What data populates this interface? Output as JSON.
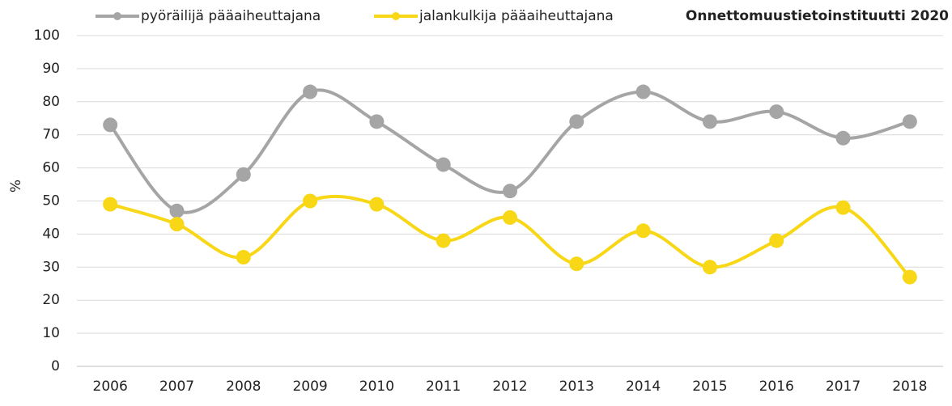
{
  "chart_data": {
    "type": "line",
    "source": "Onnettomuustietoinstituutti 2020",
    "y_label": "%",
    "categories": [
      "2006",
      "2007",
      "2008",
      "2009",
      "2010",
      "2011",
      "2012",
      "2013",
      "2014",
      "2015",
      "2016",
      "2017",
      "2018"
    ],
    "series": [
      {
        "name": "pyöräilijä pääaiheuttajana",
        "color": "#a5a5a5",
        "values": [
          73,
          47,
          58,
          83,
          74,
          61,
          53,
          74,
          83,
          74,
          77,
          69,
          74
        ]
      },
      {
        "name": "jalankulkija pääaiheuttajana",
        "color": "#f7d716",
        "values": [
          49,
          43,
          33,
          50,
          49,
          38,
          45,
          31,
          41,
          30,
          38,
          48,
          27
        ]
      }
    ],
    "ylim": [
      0,
      100
    ],
    "yticks": [
      0,
      10,
      20,
      30,
      40,
      50,
      60,
      70,
      80,
      90,
      100
    ],
    "grid": true,
    "smooth": true,
    "legend": "top"
  }
}
